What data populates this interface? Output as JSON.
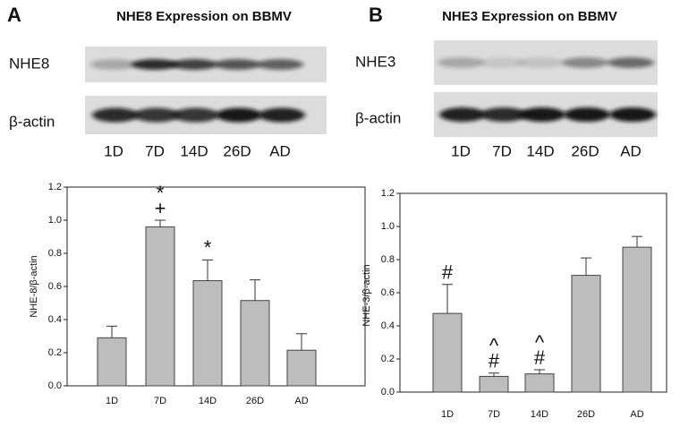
{
  "chart_data": [
    {
      "type": "bar",
      "panel": "A",
      "title": "NHE8 Expression on BBMV",
      "blot": {
        "rows": [
          "NHE8",
          "β-actin"
        ],
        "lanes": [
          "1D",
          "7D",
          "14D",
          "26D",
          "AD"
        ]
      },
      "ylabel": "NHE-8/β-actin",
      "categories": [
        "1D",
        "7D",
        "14D",
        "26D",
        "AD"
      ],
      "values": [
        0.29,
        0.96,
        0.635,
        0.515,
        0.215
      ],
      "errors": [
        0.07,
        0.04,
        0.125,
        0.125,
        0.1
      ],
      "annotations": [
        [],
        [
          "*",
          "+"
        ],
        [
          "*"
        ],
        [],
        []
      ],
      "color": "#bdbdbd",
      "ylim": [
        0,
        1.2
      ],
      "yticks": [
        {
          "value": 0,
          "label": "0.0"
        },
        0.2,
        0.4,
        0.6,
        0.8,
        {
          "value": 1,
          "label": "1.0"
        },
        1.2
      ]
    },
    {
      "type": "bar",
      "panel": "B",
      "title": "NHE3 Expression on BBMV",
      "blot": {
        "rows": [
          "NHE3",
          "β-actin"
        ],
        "lanes": [
          "1D",
          "7D",
          "14D",
          "26D",
          "AD"
        ]
      },
      "ylabel": "NHE-3/β-actin",
      "categories": [
        "1D",
        "7D",
        "14D",
        "26D",
        "AD"
      ],
      "values": [
        0.475,
        0.095,
        0.11,
        0.705,
        0.875
      ],
      "errors": [
        0.175,
        0.02,
        0.025,
        0.105,
        0.065
      ],
      "annotations": [
        [
          "#"
        ],
        [
          "^",
          "#"
        ],
        [
          "^",
          "#"
        ],
        [],
        []
      ],
      "color": "#bdbdbd",
      "ylim": [
        0,
        1.2
      ],
      "yticks": [
        {
          "value": 0,
          "label": "0.0"
        },
        0.2,
        0.4,
        0.6,
        0.8,
        {
          "value": 1,
          "label": "1.0"
        },
        1.2
      ]
    }
  ]
}
